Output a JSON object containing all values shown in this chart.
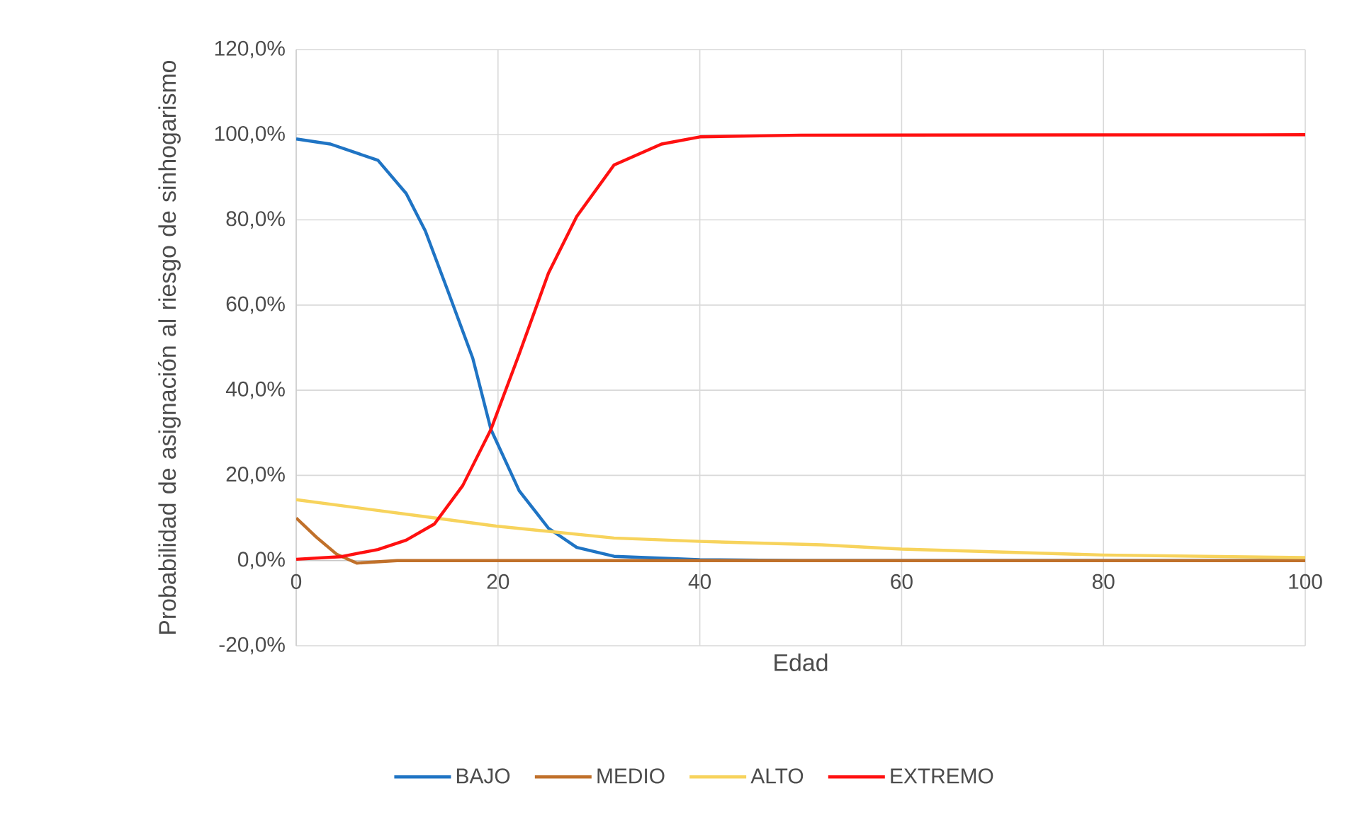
{
  "chart_data": {
    "type": "line",
    "xlabel": "Edad",
    "ylabel": "Probabilidad de asignación al riesgo de sinhogarismo",
    "xlim": [
      0,
      100
    ],
    "xticks": [
      0,
      20,
      40,
      60,
      80,
      100
    ],
    "ylim": [
      -20,
      120
    ],
    "yticks": [
      {
        "value": -20,
        "label": "-20,0%"
      },
      {
        "value": 0,
        "label": "0,0%"
      },
      {
        "value": 20,
        "label": "20,0%"
      },
      {
        "value": 40,
        "label": "40,0%"
      },
      {
        "value": 60,
        "label": "60,0%"
      },
      {
        "value": 80,
        "label": "80,0%"
      },
      {
        "value": 100,
        "label": "100,0%"
      },
      {
        "value": 120,
        "label": "120,0%"
      }
    ],
    "grid": true,
    "legend": "bottom",
    "series": [
      {
        "name": "BAJO",
        "color": "#1f74c4",
        "x": [
          0,
          3.4,
          8.1,
          10.9,
          12.8,
          15.1,
          17.5,
          19.3,
          22.1,
          25,
          27.8,
          31.5,
          40,
          50,
          100
        ],
        "values": [
          99,
          97.8,
          94,
          86.2,
          77.4,
          62.9,
          47.5,
          30.8,
          16.4,
          7.6,
          3.1,
          1,
          0.2,
          0,
          0
        ]
      },
      {
        "name": "MEDIO",
        "color": "#c0702a",
        "x": [
          0,
          2,
          4,
          6,
          8,
          10,
          100
        ],
        "values": [
          10,
          5.5,
          1.5,
          -0.6,
          -0.3,
          0,
          0
        ]
      },
      {
        "name": "ALTO",
        "color": "#f7d35c",
        "x": [
          0,
          12.8,
          19.8,
          31.5,
          40,
          52.1,
          60,
          80,
          100
        ],
        "values": [
          14.3,
          10.3,
          8.1,
          5.3,
          4.5,
          3.7,
          2.7,
          1.3,
          0.7
        ]
      },
      {
        "name": "EXTREMO",
        "color": "#ff1010",
        "x": [
          0,
          4.4,
          8.1,
          10.9,
          13.7,
          16.5,
          19.3,
          22.1,
          25,
          27.8,
          31.5,
          36.2,
          40,
          50,
          100
        ],
        "values": [
          0.3,
          0.9,
          2.6,
          4.8,
          8.6,
          17.6,
          30.8,
          48.5,
          67.5,
          80.8,
          92.9,
          97.8,
          99.5,
          99.9,
          100
        ]
      }
    ]
  }
}
